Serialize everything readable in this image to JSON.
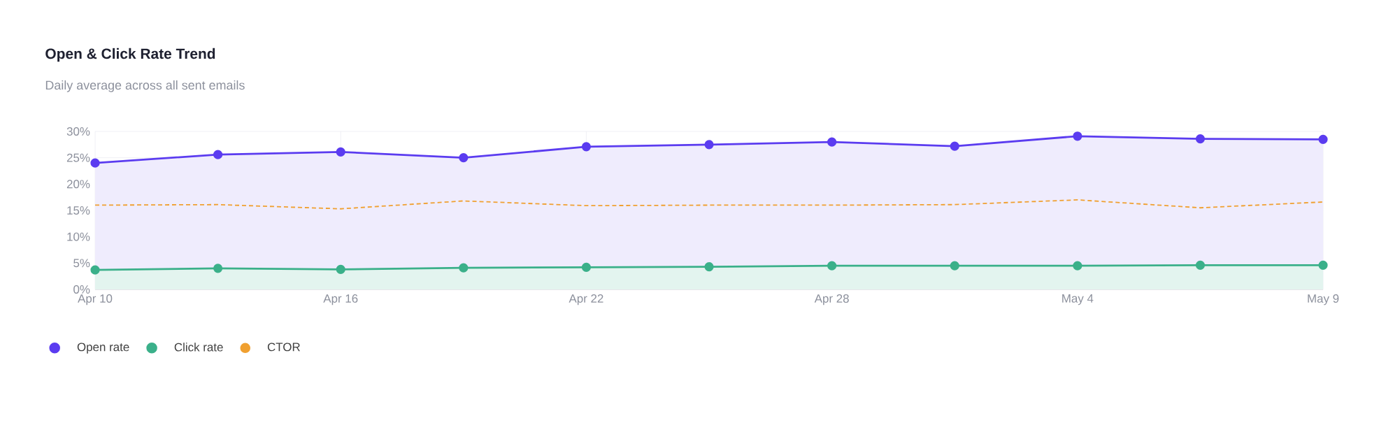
{
  "chart_data": {
    "type": "area",
    "title": "Open & Click Rate Trend",
    "subtitle": "Daily average across all sent emails",
    "categories": [
      "Apr 10",
      null,
      "Apr 16",
      null,
      "Apr 22",
      null,
      "Apr 28",
      null,
      "May 4",
      null,
      "May 9"
    ],
    "series": [
      {
        "name": "Open rate",
        "color": "#5b3cf0",
        "marker": "circle",
        "values": [
          24.0,
          25.6,
          26.1,
          25.0,
          27.1,
          27.5,
          28.0,
          27.2,
          29.1,
          28.6,
          28.5
        ]
      },
      {
        "name": "Click rate",
        "color": "#3bb08a",
        "marker": "circle",
        "values": [
          3.7,
          4.0,
          3.8,
          4.1,
          4.2,
          4.3,
          4.5,
          4.5,
          4.5,
          4.6,
          4.6
        ]
      },
      {
        "name": "CTOR",
        "type": "line",
        "color": "#f0a030",
        "marker": "none",
        "line_style": "dashed",
        "values": [
          16.0,
          16.1,
          15.3,
          16.8,
          15.9,
          16.0,
          16.0,
          16.1,
          17.0,
          15.5,
          16.6
        ]
      }
    ],
    "ylim": [
      0,
      30
    ],
    "yticks": [
      {
        "value": 0,
        "label": "0%"
      },
      {
        "value": 5,
        "label": "5%"
      },
      {
        "value": 10,
        "label": "10%"
      },
      {
        "value": 15,
        "label": "15%"
      },
      {
        "value": 20,
        "label": "20%"
      },
      {
        "value": 25,
        "label": "25%"
      },
      {
        "value": 30,
        "label": "30%"
      }
    ],
    "grid": true,
    "legend": "bottom left"
  }
}
